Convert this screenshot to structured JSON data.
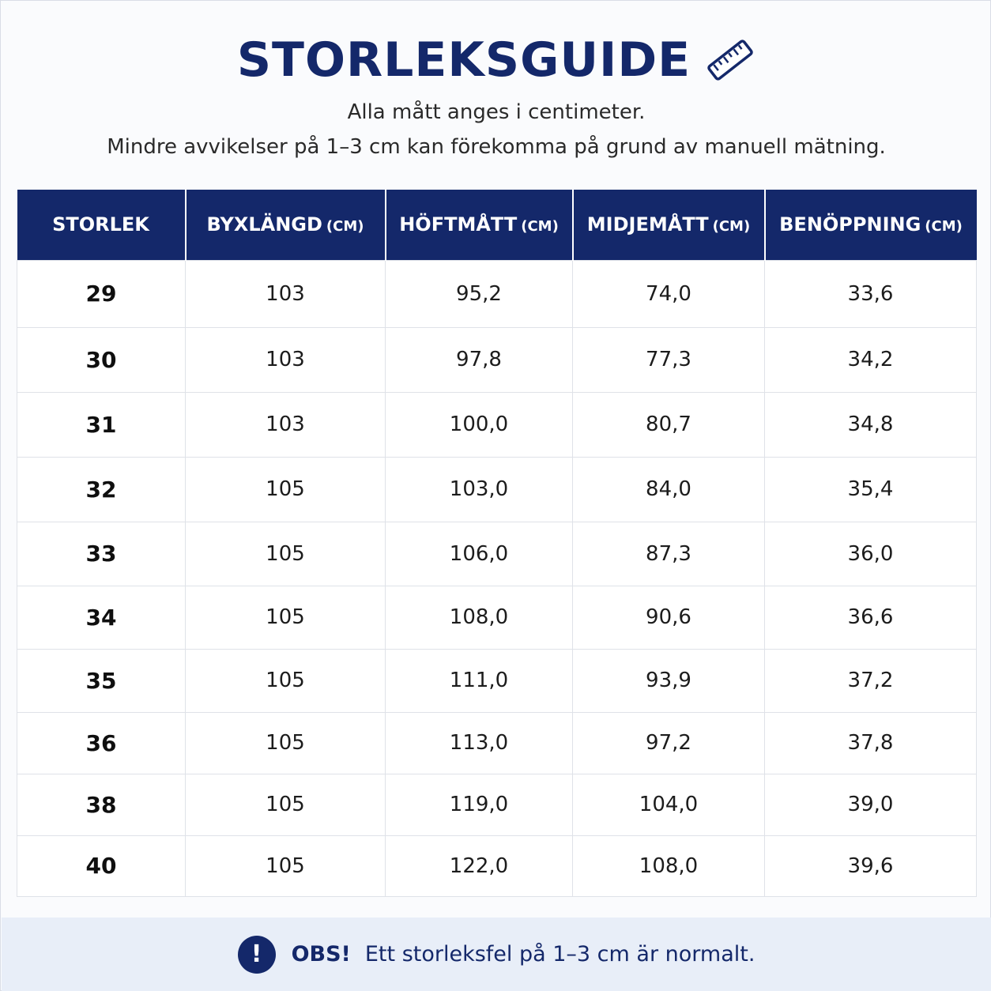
{
  "header": {
    "title": "STORLEKSGUIDE",
    "subtitle_line1": "Alla mått anges i centimeter.",
    "subtitle_line2": "Mindre avvikelser på 1–3 cm kan förekomma på grund av manuell mätning.",
    "icon": "ruler-icon"
  },
  "table": {
    "columns": [
      {
        "label": "STORLEK",
        "unit": ""
      },
      {
        "label": "BYXLÄNGD",
        "unit": "(CM)"
      },
      {
        "label": "HÖFTMÅTT",
        "unit": "(CM)"
      },
      {
        "label": "MIDJEMÅTT",
        "unit": "(CM)"
      },
      {
        "label": "BENÖPPNING",
        "unit": "(CM)"
      }
    ],
    "rows": [
      [
        "29",
        "103",
        "95,2",
        "74,0",
        "33,6"
      ],
      [
        "30",
        "103",
        "97,8",
        "77,3",
        "34,2"
      ],
      [
        "31",
        "103",
        "100,0",
        "80,7",
        "34,8"
      ],
      [
        "32",
        "105",
        "103,0",
        "84,0",
        "35,4"
      ],
      [
        "33",
        "105",
        "106,0",
        "87,3",
        "36,0"
      ],
      [
        "34",
        "105",
        "108,0",
        "90,6",
        "36,6"
      ],
      [
        "35",
        "105",
        "111,0",
        "93,9",
        "37,2"
      ],
      [
        "36",
        "105",
        "113,0",
        "97,2",
        "37,8"
      ],
      [
        "38",
        "105",
        "119,0",
        "104,0",
        "39,0"
      ],
      [
        "40",
        "105",
        "122,0",
        "108,0",
        "39,6"
      ]
    ]
  },
  "footer": {
    "icon": "exclamation-icon",
    "icon_glyph": "!",
    "label": "OBS!",
    "text": "Ett storleksfel på 1–3 cm är normalt."
  },
  "colors": {
    "navy": "#14286a",
    "footer_bg": "#e8eef8",
    "grid": "#dfe2e8"
  }
}
